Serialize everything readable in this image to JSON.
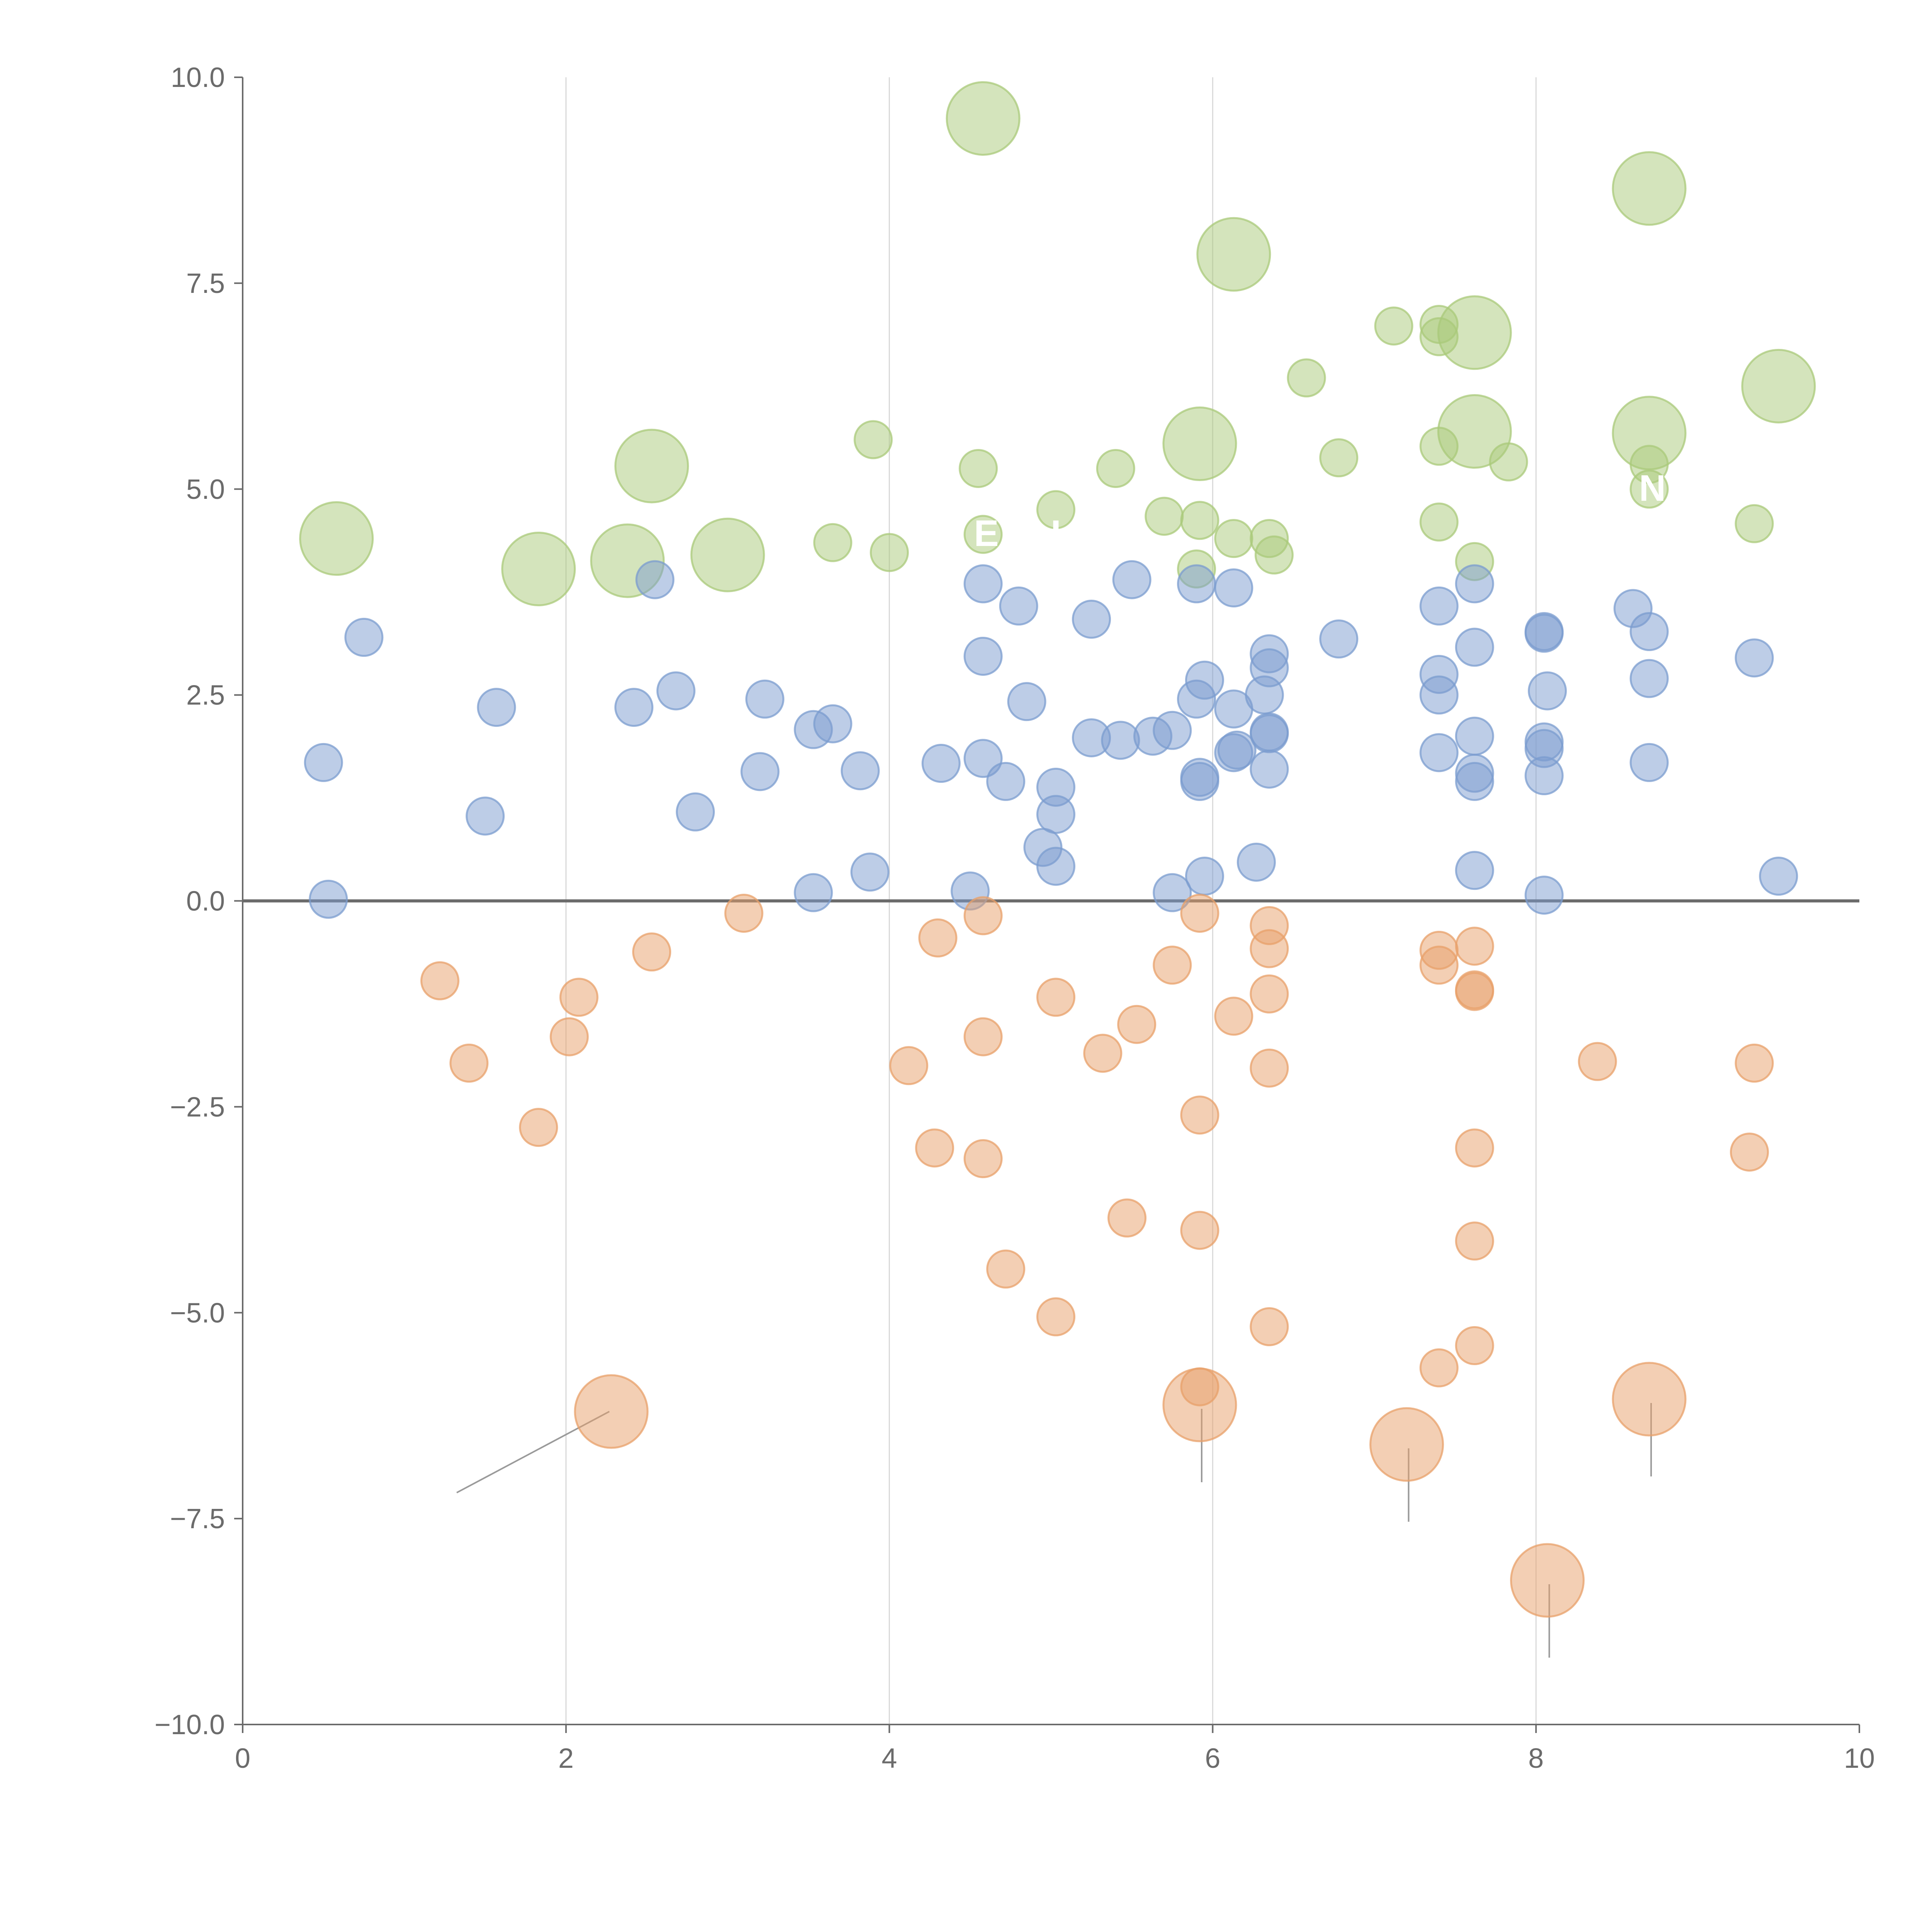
{
  "chart_data": {
    "type": "scatter",
    "title": "",
    "xlabel": "",
    "ylabel": "",
    "xlim": [
      0,
      10
    ],
    "ylim": [
      -10,
      10
    ],
    "x_ticks": [
      {
        "value": 0,
        "label": "0"
      },
      {
        "value": 2,
        "label": "2"
      },
      {
        "value": 4,
        "label": "4"
      },
      {
        "value": 6,
        "label": "6"
      },
      {
        "value": 8,
        "label": "8"
      },
      {
        "value": 10,
        "label": "10"
      }
    ],
    "y_ticks": [
      {
        "value": 10,
        "label": "10.0"
      },
      {
        "value": 7.5,
        "label": "7.5"
      },
      {
        "value": 5,
        "label": "5.0"
      },
      {
        "value": 2.5,
        "label": "2.5"
      },
      {
        "value": 0,
        "label": "0.0"
      },
      {
        "value": -2.5,
        "label": "−2.5"
      },
      {
        "value": -5,
        "label": "−5.0"
      },
      {
        "value": -7.5,
        "label": "−7.5"
      },
      {
        "value": -10,
        "label": "−10.0"
      }
    ],
    "vertical_grid_at": [
      2,
      4,
      6,
      8
    ],
    "reference_line_y": 0,
    "series": [
      {
        "name": "green",
        "color": "#a9c97a",
        "points": [
          [
            4.58,
            9.5,
            3
          ],
          [
            8.7,
            8.65,
            3
          ],
          [
            6.13,
            7.85,
            3
          ],
          [
            7.62,
            6.9,
            3
          ],
          [
            7.12,
            6.98,
            1
          ],
          [
            7.4,
            7.0,
            1
          ],
          [
            7.4,
            6.85,
            1
          ],
          [
            6.58,
            6.35,
            1
          ],
          [
            9.5,
            6.25,
            3
          ],
          [
            8.7,
            5.68,
            3
          ],
          [
            7.62,
            5.7,
            3
          ],
          [
            5.92,
            5.55,
            3
          ],
          [
            2.53,
            5.28,
            3
          ],
          [
            3.9,
            5.6,
            1
          ],
          [
            4.55,
            5.25,
            1
          ],
          [
            5.4,
            5.25,
            1
          ],
          [
            6.78,
            5.38,
            1
          ],
          [
            7.4,
            5.52,
            1
          ],
          [
            7.83,
            5.33,
            1
          ],
          [
            8.7,
            5.3,
            1
          ],
          [
            8.7,
            5.0,
            1
          ],
          [
            0.58,
            4.4,
            3
          ],
          [
            1.83,
            4.03,
            3
          ],
          [
            2.38,
            4.13,
            3
          ],
          [
            3.0,
            4.2,
            3
          ],
          [
            3.65,
            4.35,
            1
          ],
          [
            4.0,
            4.23,
            1
          ],
          [
            4.58,
            4.45,
            1
          ],
          [
            5.03,
            4.75,
            1
          ],
          [
            5.7,
            4.67,
            1
          ],
          [
            5.92,
            4.62,
            1
          ],
          [
            6.13,
            4.4,
            1
          ],
          [
            6.35,
            4.4,
            1
          ],
          [
            6.38,
            4.2,
            1
          ],
          [
            5.9,
            4.03,
            1
          ],
          [
            7.4,
            4.6,
            1
          ],
          [
            7.62,
            4.12,
            1
          ],
          [
            9.35,
            4.58,
            1
          ]
        ]
      },
      {
        "name": "blue",
        "color": "#7b9ccf",
        "points": [
          [
            0.75,
            3.2,
            1
          ],
          [
            0.5,
            1.68,
            1
          ],
          [
            0.53,
            0.02,
            1
          ],
          [
            1.5,
            1.03,
            1
          ],
          [
            1.57,
            2.35,
            1
          ],
          [
            2.42,
            2.35,
            1
          ],
          [
            2.55,
            3.9,
            1
          ],
          [
            2.68,
            2.55,
            1
          ],
          [
            2.8,
            1.08,
            1
          ],
          [
            3.2,
            1.57,
            1
          ],
          [
            3.23,
            2.45,
            1
          ],
          [
            3.53,
            2.08,
            1
          ],
          [
            3.65,
            2.15,
            1
          ],
          [
            3.82,
            1.58,
            1
          ],
          [
            3.53,
            0.1,
            1
          ],
          [
            3.88,
            0.35,
            1
          ],
          [
            4.32,
            1.67,
            1
          ],
          [
            4.5,
            0.12,
            1
          ],
          [
            4.58,
            3.85,
            1
          ],
          [
            4.58,
            2.97,
            1
          ],
          [
            4.58,
            1.73,
            1
          ],
          [
            4.72,
            1.45,
            1
          ],
          [
            4.8,
            3.58,
            1
          ],
          [
            4.85,
            2.42,
            1
          ],
          [
            4.95,
            0.65,
            1
          ],
          [
            5.03,
            1.38,
            1
          ],
          [
            5.03,
            1.05,
            1
          ],
          [
            5.03,
            0.42,
            1
          ],
          [
            5.25,
            3.42,
            1
          ],
          [
            5.25,
            1.98,
            1
          ],
          [
            5.43,
            1.95,
            1
          ],
          [
            5.5,
            3.9,
            1
          ],
          [
            5.63,
            2.0,
            1
          ],
          [
            5.75,
            2.07,
            1
          ],
          [
            5.75,
            0.1,
            1
          ],
          [
            5.9,
            3.85,
            1
          ],
          [
            5.9,
            2.45,
            1
          ],
          [
            5.92,
            1.5,
            1
          ],
          [
            5.92,
            1.45,
            1
          ],
          [
            5.95,
            2.68,
            1
          ],
          [
            5.95,
            0.3,
            1
          ],
          [
            6.13,
            3.8,
            1
          ],
          [
            6.13,
            2.33,
            1
          ],
          [
            6.13,
            1.8,
            1
          ],
          [
            6.15,
            1.83,
            1
          ],
          [
            6.27,
            0.47,
            1
          ],
          [
            6.32,
            2.5,
            1
          ],
          [
            6.35,
            3.0,
            1
          ],
          [
            6.35,
            2.83,
            1
          ],
          [
            6.35,
            2.05,
            1
          ],
          [
            6.35,
            2.03,
            1
          ],
          [
            6.35,
            1.6,
            1
          ],
          [
            6.78,
            3.18,
            1
          ],
          [
            7.4,
            3.58,
            1
          ],
          [
            7.4,
            2.75,
            1
          ],
          [
            7.4,
            2.5,
            1
          ],
          [
            7.4,
            1.8,
            1
          ],
          [
            7.62,
            3.85,
            1
          ],
          [
            7.62,
            3.08,
            1
          ],
          [
            7.62,
            2.0,
            1
          ],
          [
            7.62,
            1.55,
            1
          ],
          [
            7.62,
            1.45,
            1
          ],
          [
            7.62,
            0.37,
            1
          ],
          [
            8.05,
            3.27,
            1
          ],
          [
            8.05,
            3.25,
            1
          ],
          [
            8.07,
            2.55,
            1
          ],
          [
            8.05,
            1.93,
            1
          ],
          [
            8.05,
            1.85,
            1
          ],
          [
            8.05,
            1.52,
            1
          ],
          [
            8.05,
            0.07,
            1
          ],
          [
            8.6,
            3.55,
            1
          ],
          [
            8.7,
            3.27,
            1
          ],
          [
            8.7,
            2.7,
            1
          ],
          [
            8.7,
            1.68,
            1
          ],
          [
            9.35,
            2.95,
            1
          ],
          [
            9.5,
            0.3,
            1
          ]
        ]
      },
      {
        "name": "orange",
        "color": "#e8a06a",
        "points": [
          [
            1.22,
            -0.97,
            1
          ],
          [
            1.4,
            -1.97,
            1
          ],
          [
            1.83,
            -2.75,
            1
          ],
          [
            2.02,
            -1.65,
            1
          ],
          [
            2.08,
            -1.17,
            1
          ],
          [
            2.53,
            -0.62,
            1
          ],
          [
            2.28,
            -6.2,
            3
          ],
          [
            3.1,
            -0.15,
            1
          ],
          [
            4.12,
            -2.0,
            1
          ],
          [
            4.28,
            -3.0,
            1
          ],
          [
            4.3,
            -0.45,
            1
          ],
          [
            4.58,
            -0.18,
            1
          ],
          [
            4.58,
            -1.65,
            1
          ],
          [
            4.58,
            -3.13,
            1
          ],
          [
            4.72,
            -4.47,
            1
          ],
          [
            5.03,
            -1.17,
            1
          ],
          [
            5.03,
            -5.05,
            1
          ],
          [
            5.32,
            -1.85,
            1
          ],
          [
            5.47,
            -3.85,
            1
          ],
          [
            5.53,
            -1.5,
            1
          ],
          [
            5.75,
            -0.78,
            1
          ],
          [
            5.92,
            -0.15,
            1
          ],
          [
            5.92,
            -2.6,
            1
          ],
          [
            5.92,
            -4.0,
            1
          ],
          [
            5.92,
            -5.9,
            1
          ],
          [
            5.92,
            -6.12,
            3
          ],
          [
            6.13,
            -1.4,
            1
          ],
          [
            6.35,
            -0.3,
            1
          ],
          [
            6.35,
            -0.58,
            1
          ],
          [
            6.35,
            -1.13,
            1
          ],
          [
            6.35,
            -2.03,
            1
          ],
          [
            6.35,
            -5.17,
            1
          ],
          [
            7.2,
            -6.6,
            3
          ],
          [
            7.4,
            -0.6,
            1
          ],
          [
            7.4,
            -0.78,
            1
          ],
          [
            7.4,
            -5.67,
            1
          ],
          [
            7.62,
            -0.55,
            1
          ],
          [
            7.62,
            -1.08,
            1
          ],
          [
            7.62,
            -1.1,
            1
          ],
          [
            7.62,
            -3.0,
            1
          ],
          [
            7.62,
            -4.13,
            1
          ],
          [
            7.62,
            -5.4,
            1
          ],
          [
            8.07,
            -8.25,
            3
          ],
          [
            8.38,
            -1.95,
            1
          ],
          [
            8.7,
            -6.05,
            3
          ],
          [
            9.32,
            -3.05,
            1
          ],
          [
            9.35,
            -1.97,
            1
          ]
        ]
      }
    ],
    "annotations": [
      {
        "x": 4.6,
        "y": 4.45,
        "text": "E"
      },
      {
        "x": 5.03,
        "y": 4.45,
        "text": "I"
      },
      {
        "x": 8.72,
        "y": 5.0,
        "text": "N"
      }
    ]
  }
}
